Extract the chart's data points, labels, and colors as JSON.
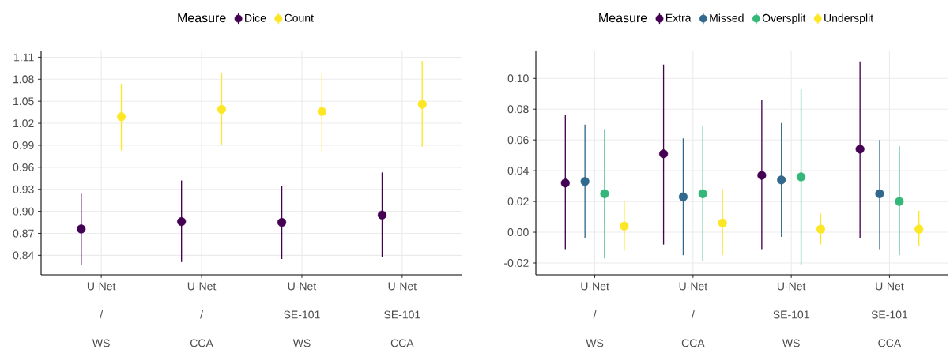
{
  "chart_data": [
    {
      "type": "scatter",
      "categories": [
        "U-Net / WS",
        "U-Net / CCA",
        "U-Net SE-101 WS",
        "U-Net SE-101 CCA"
      ],
      "legend_title": "Measure",
      "legend": "top",
      "grid": true,
      "marker": "circle",
      "ylim": [
        0.8135,
        1.118
      ],
      "yticks": [
        0.84,
        0.87,
        {
          "value": 0.9,
          "label": "0.90"
        },
        0.93,
        0.96,
        0.99,
        1.02,
        1.05,
        1.08,
        1.11
      ],
      "series": [
        {
          "name": "Dice",
          "color": "#440154",
          "values": [
            0.876,
            0.886,
            0.885,
            0.895
          ],
          "errors": [
            [
              0.827,
              0.924
            ],
            [
              0.831,
              0.942
            ],
            [
              0.835,
              0.934
            ],
            [
              0.838,
              0.953
            ]
          ]
        },
        {
          "name": "Count",
          "color": "#fde725",
          "values": [
            1.029,
            1.039,
            1.036,
            1.046
          ],
          "errors": [
            [
              0.983,
              1.074
            ],
            [
              0.99,
              1.089
            ],
            [
              0.982,
              1.089
            ],
            [
              0.988,
              1.105
            ]
          ]
        }
      ]
    },
    {
      "type": "scatter",
      "categories": [
        "U-Net / WS",
        "U-Net / CCA",
        "U-Net SE-101 WS",
        "U-Net SE-101 CCA"
      ],
      "legend_title": "Measure",
      "legend": "top",
      "grid": true,
      "marker": "circle",
      "ylim": [
        -0.0277,
        0.1176
      ],
      "yticks": [
        -0.02,
        {
          "value": 0,
          "label": "0.00"
        },
        0.02,
        0.04,
        0.06,
        0.08,
        {
          "value": 0.1,
          "label": "0.10"
        }
      ],
      "series": [
        {
          "name": "Extra",
          "color": "#440154",
          "values": [
            0.032,
            0.051,
            0.037,
            0.054
          ],
          "errors": [
            [
              -0.011,
              0.076
            ],
            [
              -0.008,
              0.109
            ],
            [
              -0.011,
              0.086
            ],
            [
              -0.004,
              0.111
            ]
          ]
        },
        {
          "name": "Missed",
          "color": "#31688e",
          "values": [
            0.033,
            0.023,
            0.034,
            0.025
          ],
          "errors": [
            [
              -0.004,
              0.07
            ],
            [
              -0.015,
              0.061
            ],
            [
              -0.003,
              0.071
            ],
            [
              -0.011,
              0.06
            ]
          ]
        },
        {
          "name": "Oversplit",
          "color": "#35b779",
          "values": [
            0.025,
            0.025,
            0.036,
            0.02
          ],
          "errors": [
            [
              -0.017,
              0.067
            ],
            [
              -0.019,
              0.069
            ],
            [
              -0.021,
              0.093
            ],
            [
              -0.015,
              0.056
            ]
          ]
        },
        {
          "name": "Undersplit",
          "color": "#fde725",
          "values": [
            0.004,
            0.006,
            0.002,
            0.002
          ],
          "errors": [
            [
              -0.012,
              0.02
            ],
            [
              -0.015,
              0.028
            ],
            [
              -0.008,
              0.012
            ],
            [
              -0.009,
              0.014
            ]
          ]
        }
      ]
    }
  ]
}
